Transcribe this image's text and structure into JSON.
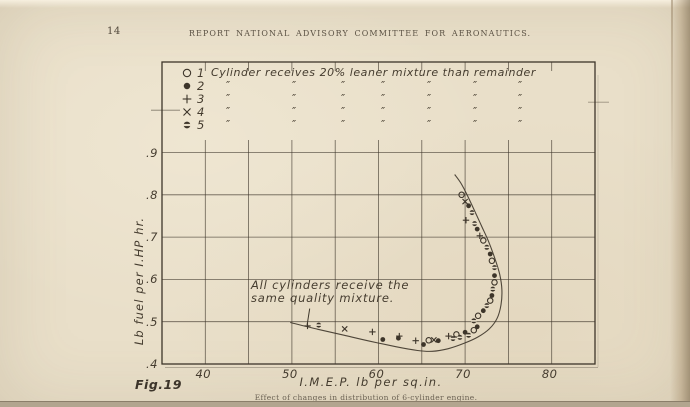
{
  "page": {
    "page_number": "14",
    "header": "REPORT NATIONAL ADVISORY COMMITTEE FOR AERONAUTICS.",
    "figure_label": "Fig.19",
    "caption": "Effect of changes in distribution of 6-cylinder engine."
  },
  "chart_data": {
    "type": "scatter",
    "xlabel": "I.M.E.P. lb per sq.in.",
    "ylabel": "Lb fuel per I.HP hr.",
    "xlim": [
      35,
      85
    ],
    "ylim": [
      0.4,
      1.11
    ],
    "x_ticks": [
      "40",
      "50",
      "60",
      "70",
      "80"
    ],
    "y_ticks": [
      ".4",
      ".5",
      ".6",
      ".7",
      ".8",
      ".9"
    ],
    "grid": "on, x every 5 units, y every 0.1",
    "legend_position": "top inside plot",
    "annotation": {
      "line1": "All cylinders receive the",
      "line2": "same quality mixture."
    },
    "legend": {
      "row_sentence": "Cylinder receives 20% leaner mixture than remainder",
      "ditto_mark": "″",
      "rows": [
        {
          "num": "1",
          "symbol": "open-circle"
        },
        {
          "num": "2",
          "symbol": "filled-circle"
        },
        {
          "num": "3",
          "symbol": "plus"
        },
        {
          "num": "4",
          "symbol": "cross"
        },
        {
          "num": "5",
          "symbol": "half-circle"
        }
      ]
    },
    "series": [
      {
        "name": "1 cylinder receives 20% leaner mixture than remainder",
        "symbol": "open-circle",
        "points": [
          [
            65.8,
            0.456
          ],
          [
            69.0,
            0.47
          ],
          [
            71.0,
            0.48
          ],
          [
            71.5,
            0.514
          ],
          [
            72.9,
            0.55
          ],
          [
            73.4,
            0.593
          ],
          [
            73.1,
            0.644
          ],
          [
            72.1,
            0.692
          ],
          [
            69.6,
            0.8
          ]
        ]
      },
      {
        "name": "2 cylinders receive 20% leaner mixture than remainder",
        "symbol": "filled-circle",
        "points": [
          [
            60.5,
            0.458
          ],
          [
            62.3,
            0.461
          ],
          [
            65.2,
            0.446
          ],
          [
            66.9,
            0.455
          ],
          [
            70.0,
            0.475
          ],
          [
            71.4,
            0.488
          ],
          [
            72.1,
            0.526
          ],
          [
            73.1,
            0.562
          ],
          [
            73.4,
            0.609
          ],
          [
            72.9,
            0.66
          ],
          [
            71.4,
            0.719
          ],
          [
            70.4,
            0.774
          ]
        ]
      },
      {
        "name": "3 cylinders receive 20% leaner mixture than remainder",
        "symbol": "plus",
        "points": [
          [
            51.8,
            0.49
          ],
          [
            59.3,
            0.476
          ],
          [
            62.4,
            0.466
          ],
          [
            64.3,
            0.455
          ],
          [
            68.1,
            0.466
          ],
          [
            71.7,
            0.703
          ],
          [
            70.1,
            0.74
          ]
        ]
      },
      {
        "name": "4 cylinders receive 20% leaner mixture than remainder",
        "symbol": "cross",
        "points": [
          [
            56.1,
            0.483
          ],
          [
            66.4,
            0.457
          ],
          [
            70.0,
            0.784
          ]
        ]
      },
      {
        "name": "5 cylinders receive 20% leaner mixture than remainder",
        "symbol": "half-circle",
        "points": [
          [
            53.1,
            0.492
          ],
          [
            68.6,
            0.46
          ],
          [
            69.4,
            0.463
          ],
          [
            70.4,
            0.468
          ],
          [
            71.0,
            0.502
          ],
          [
            72.5,
            0.538
          ],
          [
            73.2,
            0.577
          ],
          [
            73.4,
            0.628
          ],
          [
            72.5,
            0.676
          ],
          [
            71.1,
            0.732
          ],
          [
            70.8,
            0.758
          ]
        ]
      }
    ],
    "curve": [
      [
        49.8,
        0.498
      ],
      [
        53,
        0.482
      ],
      [
        56,
        0.468
      ],
      [
        59,
        0.454
      ],
      [
        62,
        0.441
      ],
      [
        64.5,
        0.432
      ],
      [
        66.2,
        0.43
      ],
      [
        68,
        0.436
      ],
      [
        70,
        0.45
      ],
      [
        71.5,
        0.464
      ],
      [
        72.8,
        0.483
      ],
      [
        73.7,
        0.508
      ],
      [
        74.15,
        0.54
      ],
      [
        74.25,
        0.575
      ],
      [
        74.0,
        0.612
      ],
      [
        73.4,
        0.652
      ],
      [
        72.7,
        0.69
      ],
      [
        71.9,
        0.726
      ],
      [
        71.1,
        0.762
      ],
      [
        70.3,
        0.797
      ],
      [
        69.5,
        0.828
      ],
      [
        68.8,
        0.848
      ]
    ],
    "leader_line": [
      [
        52.05,
        0.531
      ],
      [
        51.75,
        0.492
      ]
    ]
  }
}
